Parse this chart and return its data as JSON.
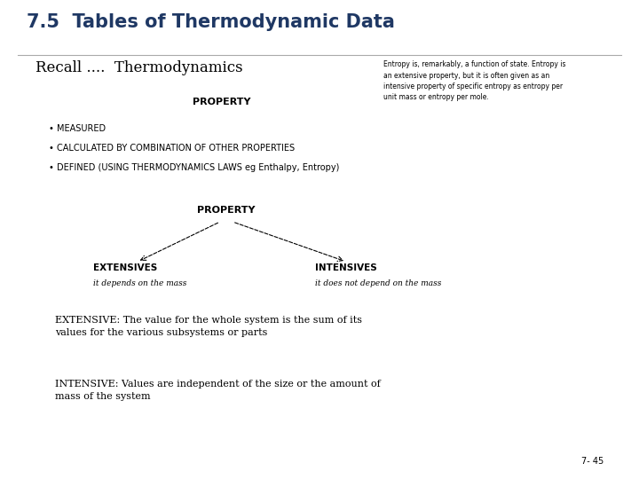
{
  "title": "7.5  Tables of Thermodynamic Data",
  "title_color": "#1F3864",
  "subtitle": "Recall ....  Thermodynamics",
  "sidebar_text": "Entropy is, remarkably, a function of state. Entropy is\nan extensive property, but it is often given as an\nintensive property of specific entropy as entropy per\nunit mass or entropy per mole.",
  "property_label": "PROPERTY",
  "bullets": [
    "• MEASURED",
    "• CALCULATED BY COMBINATION OF OTHER PROPERTIES",
    "• DEFINED (USING THERMODYNAMICS LAWS eg Enthalpy, Entropy)"
  ],
  "property_label2": "PROPERTY",
  "extensives_label": "EXTENSIVES",
  "extensives_sub": "it depends on the mass",
  "intensives_label": "INTENSIVES",
  "intensives_sub": "it does not depend on the mass",
  "extensive_def": "EXTENSIVE: The value for the whole system is the sum of its\nvalues for the various subsystems or parts",
  "intensive_def": "INTENSIVE: Values are independent of the size or the amount of\nmass of the system",
  "page_number": "7- 45",
  "bg_color": "#FFFFFF",
  "text_color": "#000000",
  "title_fontsize": 15,
  "subtitle_fontsize": 12,
  "property_fontsize": 8,
  "bullet_fontsize": 7,
  "sidebar_fontsize": 5.5,
  "extensives_fontsize": 7.5,
  "def_fontsize": 8
}
